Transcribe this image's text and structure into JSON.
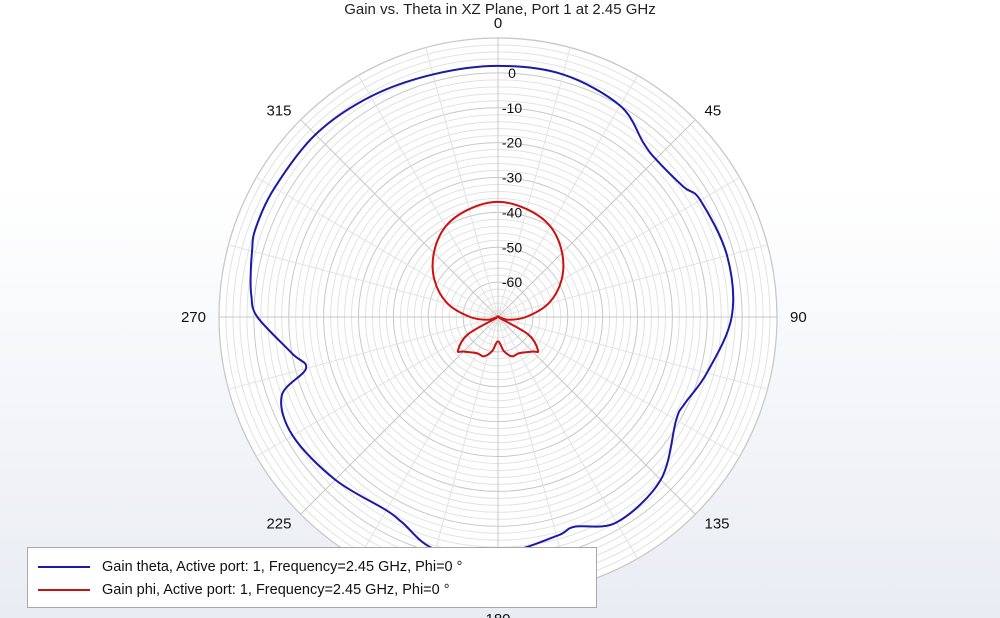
{
  "chart_data": {
    "type": "polar-line",
    "title": "Gain vs. Theta in XZ Plane,  Port 1 at 2.45 GHz",
    "angle_tick_labels": [
      "0",
      "45",
      "90",
      "135",
      "180",
      "225",
      "270",
      "315"
    ],
    "radial_tick_labels": [
      "0",
      "-10",
      "-20",
      "-30",
      "-40",
      "-50",
      "-60"
    ],
    "radial_range": [
      -70,
      10
    ],
    "angle_direction": "clockwise from top",
    "grid": true,
    "legend_position": "bottom-left",
    "series": [
      {
        "name": "Gain theta,  Active port: 1, Frequency=2.45 GHz, Phi=0 °",
        "color": "#1a1aa8",
        "theta_deg": [
          0,
          15,
          30,
          40,
          45,
          55,
          60,
          75,
          90,
          105,
          115,
          120,
          135,
          150,
          160,
          165,
          180,
          195,
          205,
          210,
          225,
          240,
          250,
          255,
          260,
          270,
          275,
          280,
          285,
          290,
          300,
          315,
          330,
          345,
          360
        ],
        "gain_db": [
          2,
          2,
          0,
          -5,
          -6,
          -5,
          -3,
          -2,
          -3,
          -8,
          -11,
          -11,
          -4,
          -2,
          -6,
          -5,
          -2,
          -1,
          -5,
          -6,
          -4,
          -2,
          -4,
          -13,
          -10,
          -1,
          1,
          2,
          3,
          4,
          4,
          4,
          3,
          2,
          2
        ]
      },
      {
        "name": "Gain phi, Active port: 1, Frequency=2.45 GHz, Phi=0 °",
        "color": "#cc1111",
        "theta_deg": [
          0,
          15,
          30,
          45,
          60,
          75,
          90,
          105,
          110,
          120,
          130,
          135,
          150,
          160,
          170,
          180,
          190,
          200,
          210,
          225,
          230,
          240,
          250,
          255,
          270,
          285,
          300,
          315,
          330,
          345,
          360
        ],
        "gain_db": [
          -37,
          -38,
          -40,
          -44,
          -49,
          -55,
          -62,
          -67,
          -70,
          -60,
          -55,
          -56,
          -58,
          -58,
          -60,
          -63,
          -60,
          -58,
          -58,
          -56,
          -55,
          -60,
          -70,
          -67,
          -62,
          -55,
          -49,
          -44,
          -40,
          -38,
          -37
        ]
      }
    ]
  },
  "legend": {
    "items": [
      {
        "label": "Gain theta,  Active port: 1, Frequency=2.45 GHz, Phi=0 °",
        "color": "#1a1aa8"
      },
      {
        "label": "Gain phi, Active port: 1, Frequency=2.45 GHz, Phi=0 °",
        "color": "#cc1111"
      }
    ]
  }
}
